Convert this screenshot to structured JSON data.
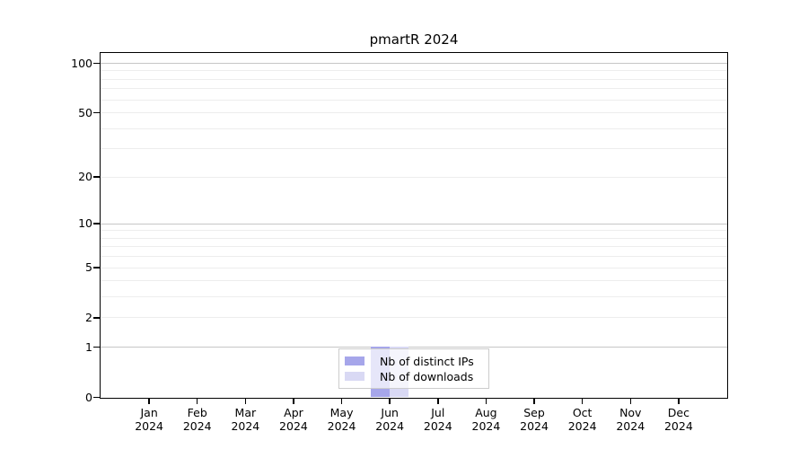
{
  "chart_data": {
    "type": "bar",
    "title": "pmartR 2024",
    "categories": [
      "Jan",
      "Feb",
      "Mar",
      "Apr",
      "May",
      "Jun",
      "Jul",
      "Aug",
      "Sep",
      "Oct",
      "Nov",
      "Dec"
    ],
    "year_label": "2024",
    "series": [
      {
        "name": "Nb of distinct IPs",
        "color": "#a6a6ea",
        "values": [
          0,
          0,
          0,
          0,
          0,
          1,
          0,
          0,
          0,
          0,
          0,
          0
        ]
      },
      {
        "name": "Nb of downloads",
        "color": "#d9d9f4",
        "values": [
          0,
          0,
          0,
          0,
          0,
          1,
          0,
          0,
          0,
          0,
          0,
          0
        ]
      }
    ],
    "yscale": "log1p",
    "ylim": [
      0,
      116
    ],
    "ytick_labels": [
      0,
      1,
      2,
      5,
      10,
      20,
      50,
      100
    ],
    "grid_major": [
      1,
      10,
      100
    ],
    "grid_minor": [
      2,
      3,
      4,
      5,
      6,
      7,
      8,
      9,
      20,
      30,
      40,
      50,
      60,
      70,
      80,
      90
    ],
    "grid_color_major": "#c6c6c6",
    "grid_color_minor": "#ededed",
    "legend": {
      "position": "bottom-center",
      "entries": [
        "Nb of distinct IPs",
        "Nb of downloads"
      ]
    },
    "xlabel": "",
    "ylabel": ""
  }
}
